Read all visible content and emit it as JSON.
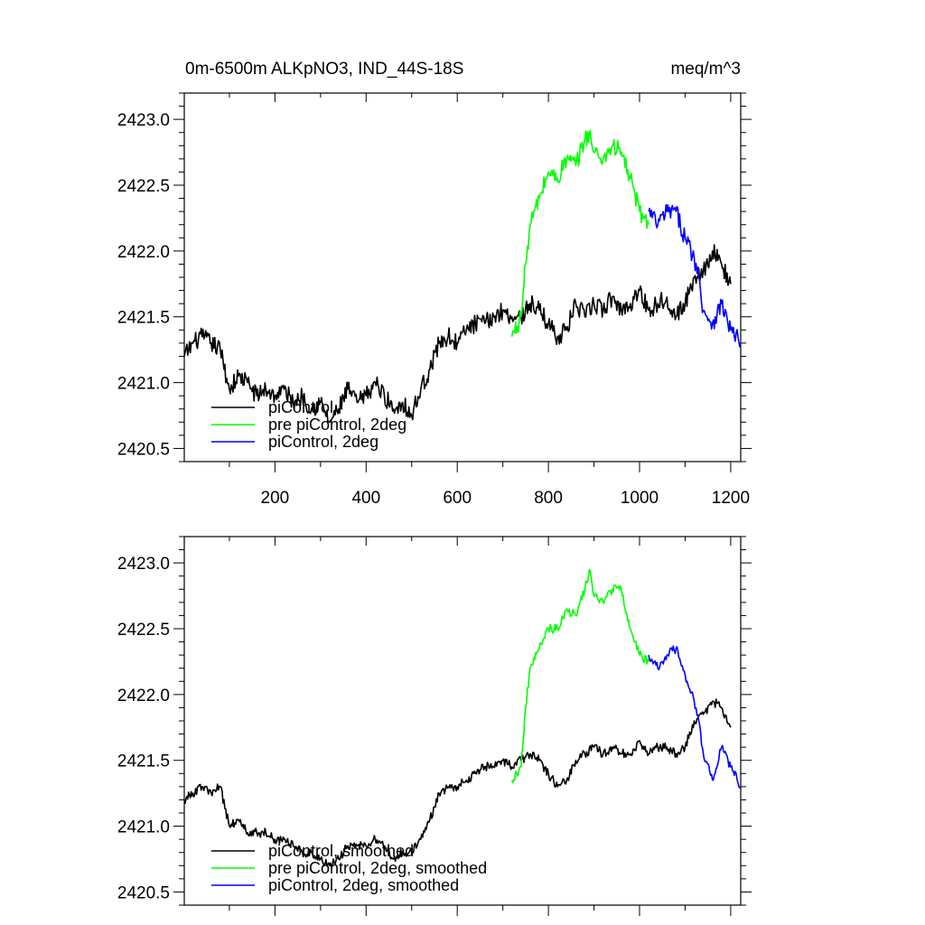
{
  "chart_data": [
    {
      "type": "line",
      "title": "0m-6500m ALKpNO3, IND_44S-18S",
      "units": "meq/m^3",
      "xlim": [
        1,
        1222
      ],
      "ylim": [
        2420.4,
        2423.2
      ],
      "xticks": [
        200,
        400,
        600,
        800,
        1000,
        1200
      ],
      "xtick_labels": [
        "200",
        "400",
        "600",
        "800",
        "1000",
        "1200"
      ],
      "yticks": [
        2420.5,
        2421.0,
        2421.5,
        2422.0,
        2422.5,
        2423.0
      ],
      "ytick_labels": [
        "2420.5",
        "2421.0",
        "2421.5",
        "2422.0",
        "2422.5",
        "2423.0"
      ],
      "legend_position": "lower-left",
      "series": [
        {
          "name": "piControl",
          "color": "#000000",
          "x": [
            1,
            20,
            40,
            60,
            80,
            100,
            120,
            140,
            160,
            180,
            200,
            220,
            240,
            260,
            280,
            300,
            320,
            340,
            360,
            380,
            400,
            420,
            440,
            460,
            480,
            500,
            520,
            540,
            560,
            580,
            600,
            620,
            640,
            660,
            680,
            700,
            720,
            740,
            760,
            780,
            800,
            820,
            840,
            860,
            880,
            900,
            920,
            940,
            960,
            980,
            1000,
            1020,
            1040,
            1060,
            1080,
            1100,
            1120,
            1140,
            1160,
            1180,
            1200
          ],
          "y": [
            2421.2,
            2421.3,
            2421.35,
            2421.3,
            2421.25,
            2420.95,
            2421.05,
            2421.0,
            2420.9,
            2420.95,
            2420.9,
            2420.95,
            2420.85,
            2420.9,
            2420.8,
            2420.85,
            2420.7,
            2420.8,
            2420.95,
            2420.85,
            2420.9,
            2421.0,
            2420.9,
            2420.8,
            2420.85,
            2420.75,
            2420.95,
            2421.1,
            2421.3,
            2421.35,
            2421.3,
            2421.4,
            2421.45,
            2421.45,
            2421.5,
            2421.55,
            2421.5,
            2421.5,
            2421.6,
            2421.55,
            2421.45,
            2421.35,
            2421.4,
            2421.6,
            2421.5,
            2421.6,
            2421.55,
            2421.65,
            2421.55,
            2421.6,
            2421.7,
            2421.55,
            2421.6,
            2421.65,
            2421.5,
            2421.6,
            2421.8,
            2421.85,
            2422.0,
            2421.9,
            2421.75
          ]
        },
        {
          "name": "pre piControl, 2deg",
          "color": "#00ff00",
          "x": [
            720,
            740,
            750,
            760,
            780,
            800,
            820,
            840,
            860,
            880,
            890,
            900,
            920,
            940,
            960,
            980,
            1000,
            1020
          ],
          "y": [
            2421.35,
            2421.5,
            2421.9,
            2422.2,
            2422.4,
            2422.6,
            2422.55,
            2422.7,
            2422.65,
            2422.85,
            2422.9,
            2422.75,
            2422.7,
            2422.8,
            2422.75,
            2422.55,
            2422.3,
            2422.2
          ]
        },
        {
          "name": "piControl, 2deg",
          "color": "#0000ff",
          "x": [
            1020,
            1040,
            1060,
            1080,
            1100,
            1120,
            1130,
            1140,
            1160,
            1180,
            1200,
            1222
          ],
          "y": [
            2422.3,
            2422.2,
            2422.3,
            2422.3,
            2422.1,
            2421.95,
            2421.8,
            2421.55,
            2421.45,
            2421.6,
            2421.4,
            2421.3
          ]
        }
      ]
    },
    {
      "type": "line",
      "title": "",
      "xlim": [
        1,
        1222
      ],
      "ylim": [
        2420.4,
        2423.2
      ],
      "xticks": [
        200,
        400,
        600,
        800,
        1000,
        1200
      ],
      "xtick_labels": [],
      "yticks": [
        2420.5,
        2421.0,
        2421.5,
        2422.0,
        2422.5,
        2423.0
      ],
      "ytick_labels": [
        "2420.5",
        "2421.0",
        "2421.5",
        "2422.0",
        "2422.5",
        "2423.0"
      ],
      "legend_position": "lower-left",
      "series": [
        {
          "name": "piControl, smoothed",
          "color": "#000000",
          "x": [
            1,
            20,
            40,
            60,
            80,
            100,
            120,
            140,
            160,
            180,
            200,
            220,
            240,
            260,
            280,
            300,
            320,
            340,
            360,
            380,
            400,
            420,
            440,
            460,
            480,
            500,
            520,
            540,
            560,
            580,
            600,
            620,
            640,
            660,
            680,
            700,
            720,
            740,
            760,
            780,
            800,
            820,
            840,
            860,
            880,
            900,
            920,
            940,
            960,
            980,
            1000,
            1020,
            1040,
            1060,
            1080,
            1100,
            1120,
            1140,
            1160,
            1180,
            1200
          ],
          "y": [
            2421.2,
            2421.25,
            2421.3,
            2421.25,
            2421.3,
            2421.0,
            2421.05,
            2420.95,
            2420.95,
            2420.95,
            2420.9,
            2420.9,
            2420.85,
            2420.8,
            2420.8,
            2420.75,
            2420.7,
            2420.75,
            2420.85,
            2420.85,
            2420.85,
            2420.9,
            2420.85,
            2420.75,
            2420.8,
            2420.8,
            2420.9,
            2421.05,
            2421.25,
            2421.3,
            2421.3,
            2421.35,
            2421.4,
            2421.45,
            2421.45,
            2421.5,
            2421.45,
            2421.5,
            2421.55,
            2421.5,
            2421.4,
            2421.3,
            2421.35,
            2421.5,
            2421.55,
            2421.6,
            2421.55,
            2421.6,
            2421.55,
            2421.55,
            2421.65,
            2421.55,
            2421.6,
            2421.6,
            2421.55,
            2421.6,
            2421.8,
            2421.85,
            2421.95,
            2421.9,
            2421.75
          ]
        },
        {
          "name": "pre piControl, 2deg, smoothed",
          "color": "#00ff00",
          "x": [
            720,
            740,
            750,
            760,
            780,
            800,
            820,
            840,
            860,
            880,
            890,
            900,
            920,
            940,
            960,
            980,
            1000,
            1020
          ],
          "y": [
            2421.35,
            2421.45,
            2421.9,
            2422.2,
            2422.35,
            2422.5,
            2422.5,
            2422.65,
            2422.6,
            2422.8,
            2422.95,
            2422.75,
            2422.7,
            2422.8,
            2422.8,
            2422.5,
            2422.3,
            2422.25
          ]
        },
        {
          "name": "piControl, 2deg, smoothed",
          "color": "#0000ff",
          "x": [
            1020,
            1040,
            1060,
            1080,
            1100,
            1120,
            1130,
            1140,
            1160,
            1180,
            1200,
            1222
          ],
          "y": [
            2422.3,
            2422.2,
            2422.3,
            2422.35,
            2422.15,
            2421.95,
            2421.8,
            2421.55,
            2421.35,
            2421.6,
            2421.45,
            2421.3
          ]
        }
      ]
    }
  ]
}
